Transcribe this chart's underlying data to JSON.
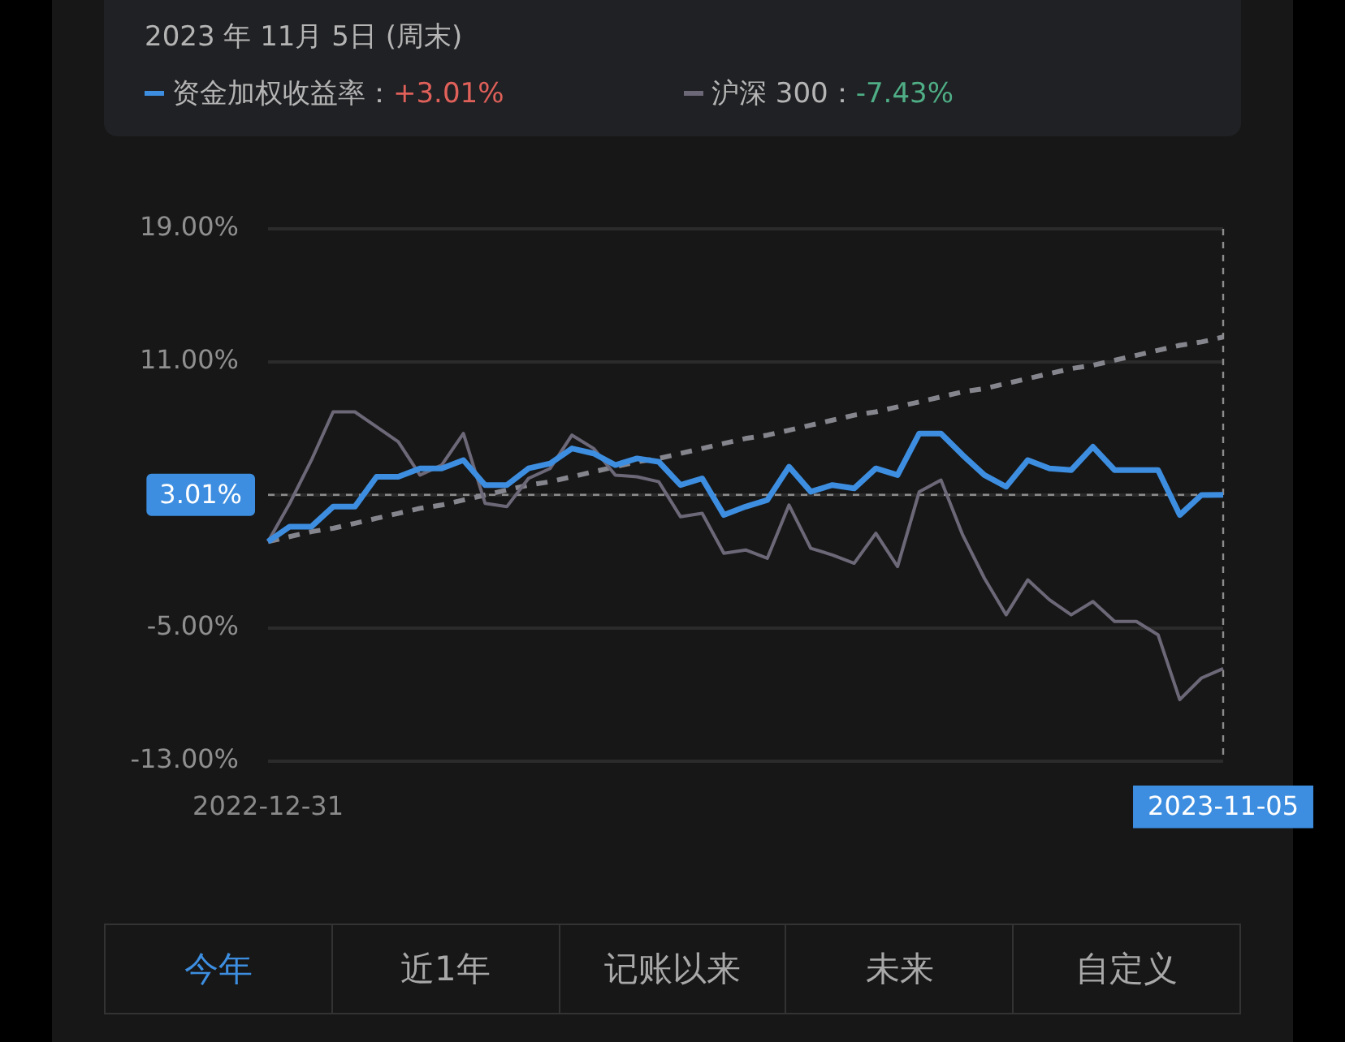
{
  "chart_data": {
    "type": "line",
    "title": "2023 年 11月 5日 (周末)",
    "categories": [
      "2022-12-31",
      null,
      null,
      null,
      null,
      null,
      null,
      null,
      null,
      null,
      null,
      null,
      null,
      null,
      null,
      null,
      null,
      null,
      null,
      null,
      null,
      null,
      null,
      null,
      null,
      null,
      null,
      null,
      null,
      null,
      null,
      null,
      null,
      null,
      null,
      null,
      null,
      null,
      null,
      null,
      null,
      null,
      null,
      null,
      "2023-11-05"
    ],
    "series": [
      {
        "name": "资金加权收益率：",
        "color": "#3d8ee0",
        "values": [
          0.2,
          1.1,
          1.1,
          2.3,
          2.3,
          4.1,
          4.1,
          4.6,
          4.6,
          5.1,
          3.6,
          3.6,
          4.6,
          4.9,
          5.8,
          5.5,
          4.8,
          5.2,
          5.0,
          3.6,
          4.0,
          1.8,
          2.3,
          2.7,
          4.7,
          3.2,
          3.6,
          3.4,
          4.6,
          4.2,
          6.7,
          6.7,
          5.4,
          4.2,
          3.5,
          5.1,
          4.6,
          4.5,
          5.9,
          4.5,
          4.5,
          4.5,
          1.8,
          3.0,
          3.01
        ]
      },
      {
        "name": "沪深 300：",
        "color": "#6d6878",
        "values": [
          0.2,
          2.5,
          5.1,
          8.0,
          8.0,
          7.1,
          6.2,
          4.2,
          4.8,
          6.7,
          2.5,
          2.3,
          4.0,
          4.6,
          6.6,
          5.8,
          4.2,
          4.1,
          3.8,
          1.7,
          1.9,
          -0.5,
          -0.3,
          -0.8,
          2.4,
          -0.2,
          -0.6,
          -1.1,
          0.7,
          -1.3,
          3.2,
          3.9,
          0.6,
          -2.0,
          -4.2,
          -2.1,
          -3.3,
          -4.2,
          -3.4,
          -4.6,
          -4.6,
          -5.4,
          -9.3,
          -8.0,
          -7.43
        ]
      },
      {
        "color": "#85858d",
        "line_style": "dashed",
        "values": [
          0.2,
          0.5,
          0.8,
          1.0,
          1.3,
          1.6,
          1.9,
          2.2,
          2.4,
          2.7,
          3.0,
          3.3,
          3.6,
          3.8,
          4.1,
          4.4,
          4.7,
          5.0,
          5.2,
          5.5,
          5.8,
          6.1,
          6.4,
          6.6,
          6.9,
          7.2,
          7.5,
          7.8,
          8.0,
          8.3,
          8.6,
          8.9,
          9.2,
          9.4,
          9.7,
          10.0,
          10.3,
          10.6,
          10.8,
          11.1,
          11.4,
          11.7,
          12.0,
          12.2,
          12.5
        ]
      }
    ],
    "ylim": [
      -13,
      19
    ],
    "yticks": [
      {
        "value": -13,
        "label": "-13.00%"
      },
      {
        "value": -5,
        "label": "-5.00%"
      },
      {
        "value": 3,
        "label": null
      },
      {
        "value": 11,
        "label": "11.00%"
      },
      {
        "value": 19,
        "label": "19.00%"
      }
    ],
    "grid": "y",
    "legend": "top",
    "ref_lines": [
      {
        "axis": "y",
        "value": 3.01,
        "label": "3.01%"
      },
      {
        "axis": "x",
        "value": "2023-11-05"
      }
    ],
    "annotations": [
      "+3.01%",
      "-7.43%",
      "今年",
      "近1年",
      "记账以来",
      "未来",
      "自定义"
    ]
  }
}
